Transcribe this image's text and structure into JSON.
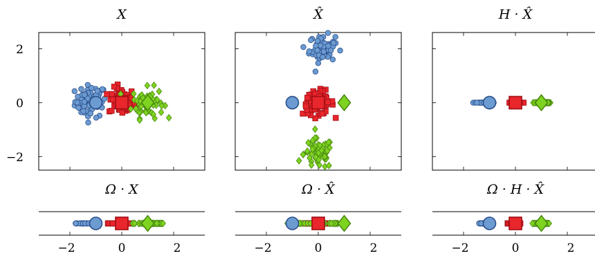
{
  "colors": {
    "blue_fill": "#6c9bd2",
    "blue_stroke": "#2a4f8a",
    "red_fill": "#e8262c",
    "red_stroke": "#a00e14",
    "green_fill": "#7ed321",
    "green_stroke": "#4a8a10"
  },
  "chart_data": [
    {
      "type": "scatter",
      "title": "X",
      "xlim": [
        -3.2,
        3.2
      ],
      "ylim": [
        -2.5,
        2.6
      ],
      "xticks": [
        -2,
        0,
        2
      ],
      "yticks": [
        2,
        0,
        -2
      ],
      "ytick_labels": [
        "2",
        "0",
        "−2"
      ],
      "show_yticks": true,
      "show_xticks": false,
      "series": [
        {
          "marker": "circle",
          "centroid": [
            -1,
            0
          ],
          "cloud_center": [
            -1.2,
            0.05
          ],
          "spread": [
            0.3,
            0.3
          ]
        },
        {
          "marker": "square",
          "centroid": [
            0,
            0
          ],
          "cloud_center": [
            0,
            0.05
          ],
          "spread": [
            0.25,
            0.25
          ]
        },
        {
          "marker": "diamond",
          "centroid": [
            1,
            0
          ],
          "cloud_center": [
            1,
            0
          ],
          "spread": [
            0.3,
            0.28
          ]
        }
      ]
    },
    {
      "type": "scatter",
      "title": "X̂",
      "xlim": [
        -3.2,
        3.2
      ],
      "ylim": [
        -2.5,
        2.6
      ],
      "xticks": [
        -2,
        0,
        2
      ],
      "yticks": [
        2,
        0,
        -2
      ],
      "show_yticks": false,
      "show_xticks": false,
      "series": [
        {
          "marker": "circle",
          "centroid": [
            -1,
            0
          ],
          "cloud_center": [
            0.15,
            2
          ],
          "spread": [
            0.25,
            0.25
          ]
        },
        {
          "marker": "square",
          "centroid": [
            0,
            0
          ],
          "cloud_center": [
            0,
            0
          ],
          "spread": [
            0.3,
            0.22
          ]
        },
        {
          "marker": "diamond",
          "centroid": [
            1,
            0
          ],
          "cloud_center": [
            0,
            -1.9
          ],
          "spread": [
            0.28,
            0.28
          ]
        }
      ]
    },
    {
      "type": "scatter",
      "title": "H · X̂",
      "xlim": [
        -3.2,
        3.2
      ],
      "ylim": [
        -2.5,
        2.6
      ],
      "xticks": [
        -2,
        0,
        2
      ],
      "yticks": [
        2,
        0,
        -2
      ],
      "show_yticks": false,
      "show_xticks": false,
      "series": [
        {
          "marker": "circle",
          "centroid": [
            -1,
            0
          ],
          "cloud_center": [
            -1.2,
            0
          ],
          "spread": [
            0.15,
            0
          ]
        },
        {
          "marker": "square",
          "centroid": [
            0,
            0
          ],
          "cloud_center": [
            0,
            0
          ],
          "spread": [
            0.1,
            0
          ]
        },
        {
          "marker": "diamond",
          "centroid": [
            1,
            0
          ],
          "cloud_center": [
            1,
            0
          ],
          "spread": [
            0.15,
            0
          ]
        }
      ]
    },
    {
      "type": "scatter",
      "title": "Ω · X",
      "xlim": [
        -3.2,
        3.2
      ],
      "xticks": [
        -2,
        0,
        2
      ],
      "xtick_labels": [
        "−2",
        "0",
        "2"
      ],
      "show_xticks": true,
      "series": [
        {
          "marker": "circle",
          "centroid": [
            -1,
            0
          ],
          "range": [
            -1.8,
            -1.1
          ]
        },
        {
          "marker": "square",
          "centroid": [
            0,
            0
          ],
          "range": [
            -0.6,
            0.3
          ]
        },
        {
          "marker": "diamond",
          "centroid": [
            1,
            0
          ],
          "range": [
            0.4,
            1.6
          ]
        }
      ]
    },
    {
      "type": "scatter",
      "title": "Ω · X̂",
      "xlim": [
        -3.2,
        3.2
      ],
      "xticks": [
        -2,
        0,
        2
      ],
      "xtick_labels": [
        "−2",
        "0",
        "2"
      ],
      "show_xticks": true,
      "series": [
        {
          "marker": "circle",
          "centroid": [
            -1,
            0
          ],
          "range": [
            -0.9,
            -0.9
          ]
        },
        {
          "marker": "square",
          "centroid": [
            0,
            0
          ],
          "range": [
            -0.5,
            0.3
          ]
        },
        {
          "marker": "diamond",
          "centroid": [
            1,
            0
          ],
          "range": [
            -1.3,
            1
          ]
        }
      ]
    },
    {
      "type": "scatter",
      "title": "Ω · H · X̂",
      "xlim": [
        -3.2,
        3.2
      ],
      "xticks": [
        -2,
        0,
        2
      ],
      "xtick_labels": [
        "−2",
        "0",
        "2"
      ],
      "show_xticks": true,
      "series": [
        {
          "marker": "circle",
          "centroid": [
            -1,
            0
          ],
          "range": [
            -1.4,
            -1.1
          ]
        },
        {
          "marker": "square",
          "centroid": [
            0,
            0
          ],
          "range": [
            -0.3,
            0.2
          ]
        },
        {
          "marker": "diamond",
          "centroid": [
            1,
            0
          ],
          "range": [
            0.6,
            1.3
          ]
        }
      ]
    }
  ]
}
